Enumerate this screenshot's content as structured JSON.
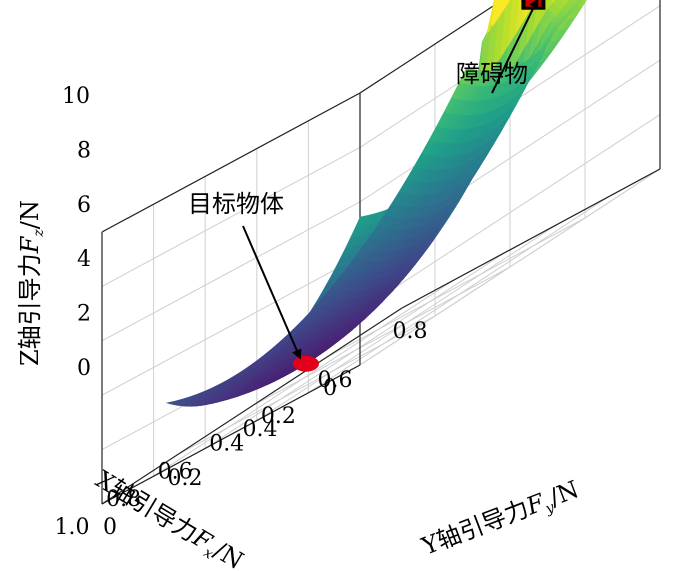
{
  "chart_data": {
    "type": "surface3d",
    "x_label": {
      "prefix": "X轴引导力",
      "var": "F",
      "sub": "x",
      "unit": "/N"
    },
    "y_label": {
      "prefix": "Y轴引导力",
      "var": "F",
      "sub": "y",
      "unit": "/N"
    },
    "z_label": {
      "prefix": "Z轴引导力",
      "var": "F",
      "sub": "z",
      "unit": "/N"
    },
    "x_ticks": [
      "0",
      "0.2",
      "0.4",
      "0.6",
      "0.8",
      "1.0"
    ],
    "y_ticks": [
      "0",
      "0.2",
      "0.4",
      "0.6",
      "0.8"
    ],
    "z_ticks": [
      "0",
      "2",
      "4",
      "6",
      "8",
      "10"
    ],
    "xlim": [
      0,
      1.0
    ],
    "ylim": [
      0,
      0.8
    ],
    "zlim": [
      0,
      10
    ],
    "colormap": "viridis",
    "grid": true,
    "target": {
      "label": "目标物体",
      "x": 0.5,
      "y": 0.2,
      "z": 0.8,
      "color": "#e3001b"
    },
    "obstacle": {
      "label": "障碍物",
      "x": 0.2,
      "y": 0.6,
      "z": 8.6,
      "color": "#cc0000"
    }
  }
}
